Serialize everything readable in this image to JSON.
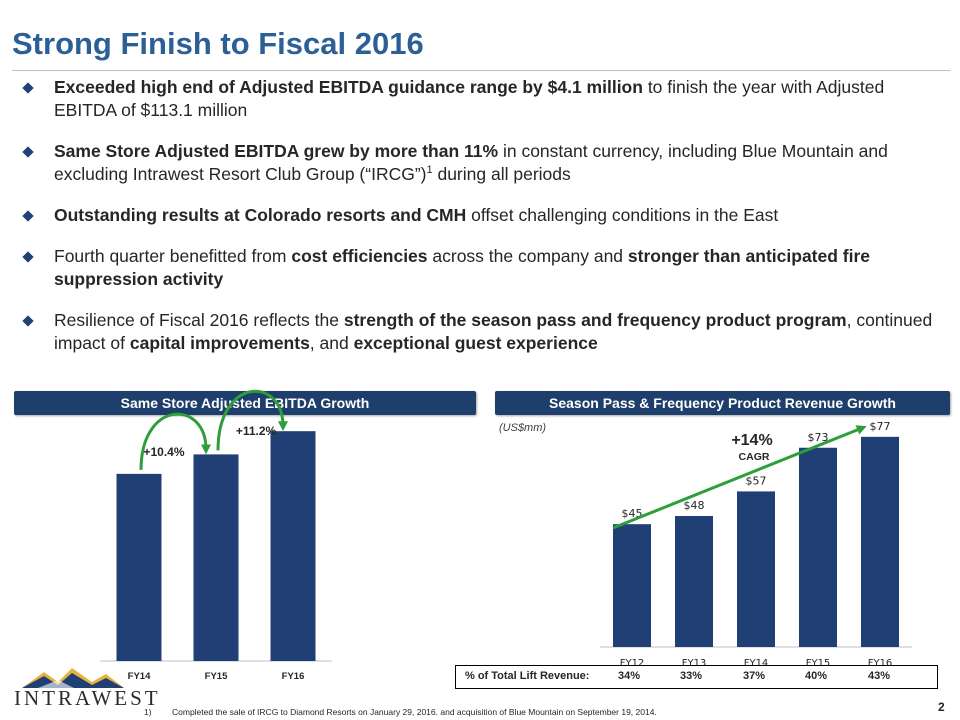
{
  "slide": {
    "title": "Strong Finish to Fiscal 2016",
    "page_number": "2"
  },
  "bullets": [
    {
      "parts": [
        {
          "text": "Exceeded high end of Adjusted EBITDA guidance range by $4.1 million",
          "bold": true
        },
        {
          "text": " to finish the year with Adjusted EBITDA of $113.1 million",
          "bold": false
        }
      ]
    },
    {
      "parts": [
        {
          "text": "Same Store Adjusted EBITDA grew by more than 11%",
          "bold": true
        },
        {
          "text": " in constant currency, including Blue Mountain and excluding Intrawest Resort Club Group (“IRCG”)",
          "bold": false
        },
        {
          "text": "1",
          "bold": false,
          "sup": true
        },
        {
          "text": " during all periods",
          "bold": false
        }
      ]
    },
    {
      "parts": [
        {
          "text": "Outstanding results at Colorado resorts and CMH",
          "bold": true
        },
        {
          "text": " offset challenging conditions in the East",
          "bold": false
        }
      ]
    },
    {
      "parts": [
        {
          "text": "Fourth quarter benefitted from ",
          "bold": false
        },
        {
          "text": "cost efficiencies",
          "bold": true
        },
        {
          "text": " across the company and ",
          "bold": false
        },
        {
          "text": "stronger than anticipated fire suppression activity",
          "bold": true
        }
      ]
    },
    {
      "parts": [
        {
          "text": "Resilience of Fiscal 2016 reflects the ",
          "bold": false
        },
        {
          "text": "strength of the season pass and frequency product program",
          "bold": true
        },
        {
          "text": ", continued impact of ",
          "bold": false
        },
        {
          "text": "capital improvements",
          "bold": true
        },
        {
          "text": ", and ",
          "bold": false
        },
        {
          "text": "exceptional guest experience",
          "bold": true
        }
      ]
    }
  ],
  "left_chart": {
    "banner": "Same Store Adjusted EBITDA Growth"
  },
  "right_chart": {
    "banner": "Season Pass & Frequency Product Revenue Growth",
    "unit_note": "(US$mm)",
    "cagr_value": "+14%",
    "cagr_label": "CAGR",
    "table_label": "% of Total Lift Revenue:",
    "table_values": [
      "34%",
      "33%",
      "37%",
      "40%",
      "43%"
    ]
  },
  "chart_data": [
    {
      "type": "bar",
      "title": "Same Store Adjusted EBITDA Growth",
      "categories": [
        "FY14",
        "FY15",
        "FY16"
      ],
      "values": [
        100,
        110.4,
        122.8
      ],
      "ylim": [
        0,
        140
      ],
      "annotations": [
        "+10.4%",
        "+11.2%"
      ],
      "xlabel": "",
      "ylabel": "",
      "color": "#1f3f75",
      "arrow_color": "#2e9e3a"
    },
    {
      "type": "bar",
      "title": "Season Pass & Frequency Product Revenue Growth",
      "categories": [
        "FY12",
        "FY13",
        "FY14",
        "FY15",
        "FY16"
      ],
      "values": [
        45,
        48,
        57,
        73,
        77
      ],
      "labels": [
        "$45",
        "$48",
        "$57",
        "$73",
        "$77"
      ],
      "ylim": [
        0,
        85
      ],
      "xlabel": "",
      "ylabel": "US$mm",
      "color": "#1f3f75",
      "trend_color": "#2e9e3a"
    }
  ],
  "footnote": {
    "number": "1)",
    "text": "Completed the sale of IRCG to Diamond Resorts on January 29, 2016. and acquisition of Blue Mountain on September 19, 2014."
  },
  "logo": {
    "text": "INTRAWEST"
  },
  "colors": {
    "title": "#2d5f97",
    "banner": "#1e3f6b",
    "bar": "#1f3f75",
    "arrow": "#2e9e3a"
  }
}
